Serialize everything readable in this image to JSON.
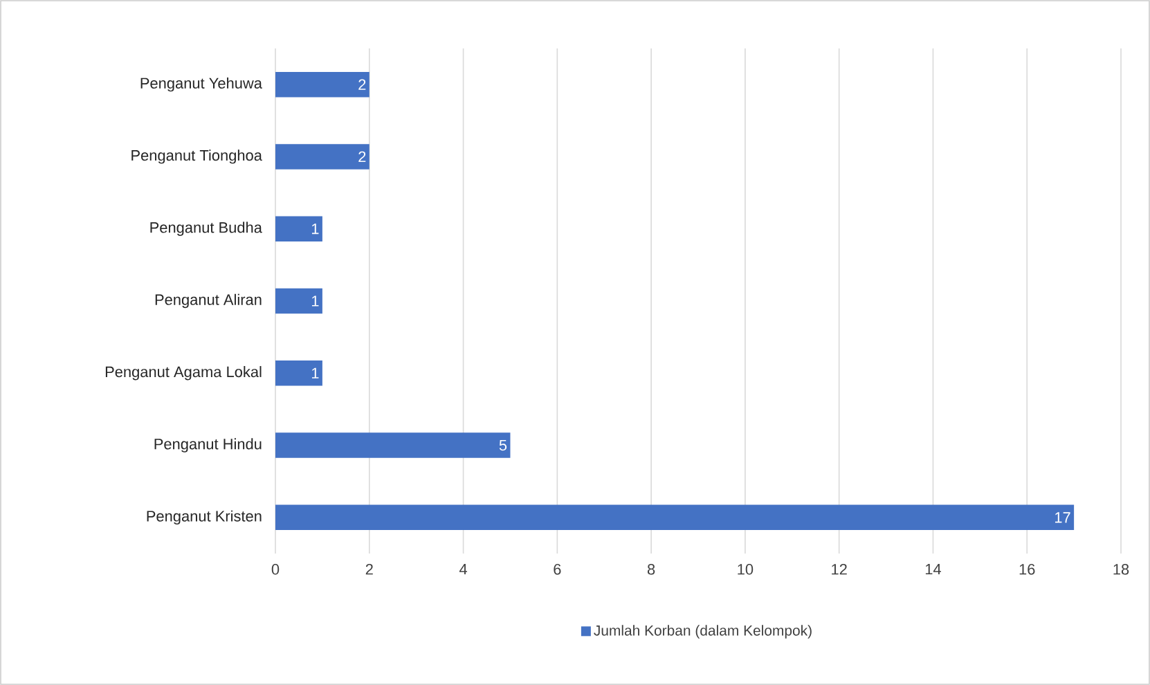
{
  "chart_data": {
    "type": "bar",
    "orientation": "horizontal",
    "categories": [
      "Penganut Yehuwa",
      "Penganut Tionghoa",
      "Penganut Budha",
      "Penganut Aliran",
      "Penganut Agama Lokal",
      "Penganut Hindu",
      "Penganut Kristen"
    ],
    "series": [
      {
        "name": "Jumlah Korban (dalam Kelompok)",
        "color": "#4472c4",
        "values": [
          2,
          2,
          1,
          1,
          1,
          5,
          17
        ]
      }
    ],
    "xlim": [
      0,
      18
    ],
    "xticks": [
      0,
      2,
      4,
      6,
      8,
      10,
      12,
      14,
      16,
      18
    ],
    "grid": "x",
    "legend": "bottom",
    "data_labels": true
  }
}
